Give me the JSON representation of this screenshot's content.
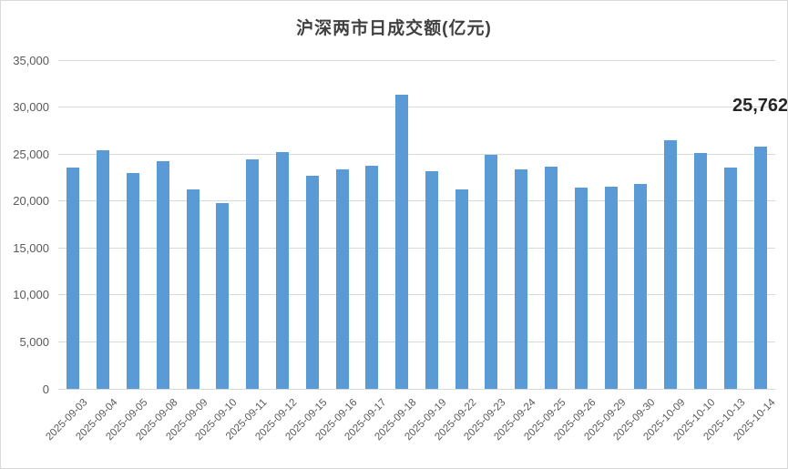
{
  "chart_data": {
    "type": "bar",
    "title": "沪深两市日成交额(亿元)",
    "xlabel": "",
    "ylabel": "",
    "categories": [
      "2025-09-03",
      "2025-09-04",
      "2025-09-05",
      "2025-09-08",
      "2025-09-09",
      "2025-09-10",
      "2025-09-11",
      "2025-09-12",
      "2025-09-15",
      "2025-09-16",
      "2025-09-17",
      "2025-09-18",
      "2025-09-19",
      "2025-09-22",
      "2025-09-23",
      "2025-09-24",
      "2025-09-25",
      "2025-09-26",
      "2025-09-29",
      "2025-09-30",
      "2025-10-09",
      "2025-10-10",
      "2025-10-13",
      "2025-10-14"
    ],
    "values": [
      23600,
      25400,
      23000,
      24200,
      21200,
      19750,
      24400,
      25250,
      22700,
      23400,
      23800,
      31300,
      23200,
      21200,
      24950,
      23350,
      23700,
      21450,
      21550,
      21850,
      26450,
      25100,
      23600,
      25762
    ],
    "ylim": [
      0,
      35000
    ],
    "ytick_step": 5000,
    "y_tick_labels": [
      "0",
      "5,000",
      "10,000",
      "15,000",
      "20,000",
      "25,000",
      "30,000",
      "35,000"
    ],
    "grid": true,
    "legend": false,
    "annotations": [
      {
        "text": "25,762",
        "value": 25762,
        "category": "2025-10-14",
        "position": "top-right"
      }
    ]
  },
  "colors": {
    "bar": "#5B9BD5",
    "gridline": "#D9D9D9",
    "axis_line": "#D9D9D9",
    "axis_text": "#595959",
    "title_text": "#404040",
    "annotation_text": "#262626",
    "background": "#FFFFFF",
    "border": "#D9D9D9"
  }
}
